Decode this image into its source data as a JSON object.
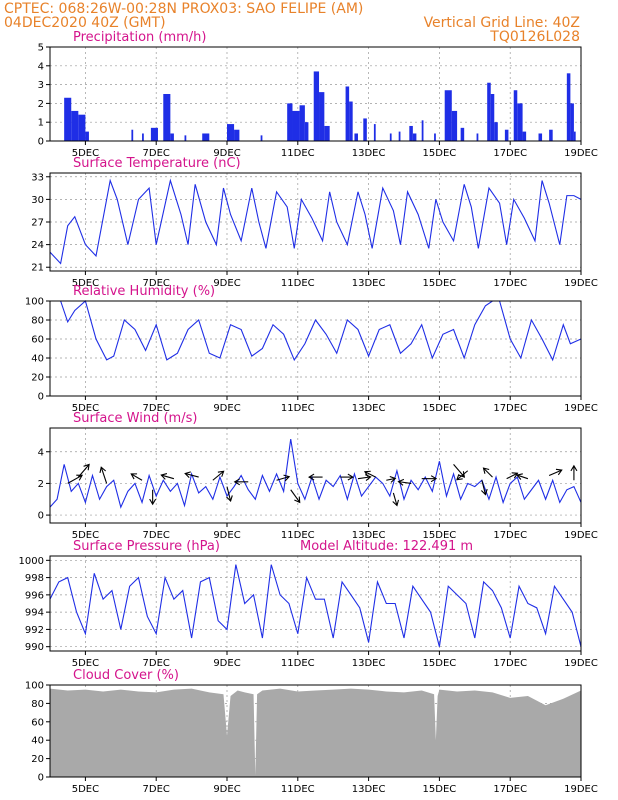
{
  "header": {
    "line1_left": "CPTEC:   068:26W-00:28N   PROX03: SAO FELIPE (AM)",
    "line2_left": "04DEC2020 40Z (GMT)",
    "line2_right": "Vertical Grid Line: 40Z",
    "line3_right": "TQ0126L028"
  },
  "colors": {
    "header": "#e8822a",
    "panel_title": "#d4148c",
    "series_line": "#1f2ee6",
    "precip_bar": "#1f2ee6",
    "cloud_fill": "#a9a9a9",
    "arrow": "#000000"
  },
  "x_axis": {
    "start_day": 4,
    "end_day": 19,
    "tick_days": [
      5,
      7,
      9,
      11,
      13,
      15,
      17,
      19
    ],
    "tick_labels": [
      "5DEC",
      "7DEC",
      "9DEC",
      "11DEC",
      "13DEC",
      "15DEC",
      "17DEC",
      "19DEC"
    ]
  },
  "chart_data": [
    {
      "id": "precip",
      "type": "bar",
      "title": "Precipitation (mm/h)",
      "ylim": [
        0,
        5
      ],
      "yticks": [
        0,
        1,
        2,
        3,
        4,
        5
      ],
      "events": [
        [
          4.4,
          4.6,
          2.3
        ],
        [
          4.6,
          4.8,
          1.6
        ],
        [
          4.8,
          5.0,
          1.4
        ],
        [
          5.0,
          5.1,
          0.5
        ],
        [
          6.3,
          6.35,
          0.6
        ],
        [
          6.6,
          6.65,
          0.4
        ],
        [
          6.85,
          7.05,
          0.7
        ],
        [
          7.2,
          7.4,
          2.5
        ],
        [
          7.4,
          7.5,
          0.4
        ],
        [
          7.8,
          7.85,
          0.3
        ],
        [
          8.3,
          8.5,
          0.4
        ],
        [
          9.0,
          9.2,
          0.9
        ],
        [
          9.2,
          9.35,
          0.6
        ],
        [
          9.95,
          10.0,
          0.3
        ],
        [
          10.7,
          10.85,
          2.0
        ],
        [
          10.85,
          11.05,
          1.6
        ],
        [
          11.05,
          11.2,
          1.9
        ],
        [
          11.2,
          11.3,
          1.0
        ],
        [
          11.45,
          11.6,
          3.7
        ],
        [
          11.6,
          11.75,
          2.6
        ],
        [
          11.75,
          11.9,
          0.8
        ],
        [
          12.35,
          12.45,
          2.9
        ],
        [
          12.45,
          12.55,
          2.1
        ],
        [
          12.6,
          12.7,
          0.4
        ],
        [
          12.85,
          12.95,
          1.2
        ],
        [
          13.15,
          13.2,
          0.9
        ],
        [
          13.6,
          13.65,
          0.4
        ],
        [
          13.85,
          13.9,
          0.5
        ],
        [
          14.15,
          14.25,
          0.8
        ],
        [
          14.25,
          14.35,
          0.4
        ],
        [
          14.5,
          14.55,
          1.1
        ],
        [
          14.85,
          14.9,
          0.4
        ],
        [
          15.15,
          15.35,
          2.7
        ],
        [
          15.35,
          15.5,
          1.6
        ],
        [
          15.6,
          15.7,
          0.7
        ],
        [
          16.05,
          16.1,
          0.4
        ],
        [
          16.35,
          16.45,
          3.1
        ],
        [
          16.45,
          16.55,
          2.5
        ],
        [
          16.55,
          16.65,
          1.0
        ],
        [
          16.85,
          16.95,
          0.6
        ],
        [
          17.1,
          17.2,
          2.7
        ],
        [
          17.2,
          17.35,
          2.0
        ],
        [
          17.35,
          17.45,
          0.5
        ],
        [
          17.8,
          17.9,
          0.4
        ],
        [
          18.1,
          18.2,
          0.6
        ],
        [
          18.6,
          18.7,
          3.6
        ],
        [
          18.7,
          18.8,
          2.0
        ],
        [
          18.8,
          18.85,
          0.5
        ]
      ]
    },
    {
      "id": "temp",
      "type": "line",
      "title": "Surface Temperature (nC)",
      "ylim": [
        20.5,
        33.5
      ],
      "yticks": [
        21,
        24,
        27,
        30,
        33
      ],
      "x": [
        4.0,
        4.3,
        4.5,
        4.7,
        5.0,
        5.3,
        5.7,
        5.9,
        6.2,
        6.5,
        6.8,
        7.0,
        7.4,
        7.7,
        7.9,
        8.1,
        8.4,
        8.7,
        8.9,
        9.1,
        9.4,
        9.7,
        9.9,
        10.1,
        10.4,
        10.7,
        10.9,
        11.1,
        11.4,
        11.7,
        11.9,
        12.1,
        12.4,
        12.7,
        12.9,
        13.1,
        13.4,
        13.7,
        13.9,
        14.1,
        14.4,
        14.7,
        14.9,
        15.1,
        15.4,
        15.7,
        15.9,
        16.1,
        16.4,
        16.7,
        16.9,
        17.1,
        17.4,
        17.7,
        17.9,
        18.1,
        18.4,
        18.6,
        18.8,
        19.0
      ],
      "y": [
        23.0,
        21.5,
        26.5,
        27.7,
        24.0,
        22.5,
        32.5,
        30.0,
        24.0,
        30.0,
        31.5,
        24.0,
        32.5,
        28.0,
        24.0,
        32.0,
        27.0,
        24.0,
        31.5,
        28.0,
        24.5,
        31.5,
        27.0,
        23.5,
        31.0,
        29.0,
        23.5,
        30.0,
        27.5,
        24.5,
        31.0,
        27.0,
        24.0,
        31.0,
        28.0,
        23.5,
        31.5,
        28.5,
        24.0,
        31.0,
        28.0,
        23.5,
        30.0,
        27.0,
        24.5,
        32.0,
        29.0,
        23.5,
        31.5,
        29.5,
        24.0,
        30.0,
        27.5,
        24.5,
        32.5,
        29.5,
        24.0,
        30.5,
        30.5,
        30.0
      ]
    },
    {
      "id": "rh",
      "type": "line",
      "title": "Relative Humidity (%)",
      "ylim": [
        0,
        100
      ],
      "yticks": [
        0,
        20,
        40,
        60,
        80,
        100
      ],
      "x": [
        4.0,
        4.3,
        4.5,
        4.7,
        5.0,
        5.3,
        5.6,
        5.8,
        6.1,
        6.4,
        6.7,
        7.0,
        7.3,
        7.6,
        7.9,
        8.2,
        8.5,
        8.8,
        9.1,
        9.4,
        9.7,
        10.0,
        10.3,
        10.6,
        10.9,
        11.2,
        11.5,
        11.8,
        12.1,
        12.4,
        12.7,
        13.0,
        13.3,
        13.6,
        13.9,
        14.2,
        14.5,
        14.8,
        15.1,
        15.4,
        15.7,
        16.0,
        16.3,
        16.5,
        16.7,
        17.0,
        17.3,
        17.6,
        17.9,
        18.2,
        18.5,
        18.7,
        19.0
      ],
      "y": [
        100,
        100,
        78,
        90,
        100,
        60,
        38,
        42,
        80,
        70,
        48,
        75,
        38,
        45,
        70,
        80,
        45,
        40,
        75,
        70,
        42,
        50,
        75,
        65,
        38,
        55,
        80,
        65,
        45,
        80,
        70,
        42,
        70,
        75,
        45,
        55,
        75,
        40,
        65,
        70,
        40,
        75,
        95,
        100,
        100,
        60,
        40,
        80,
        60,
        38,
        75,
        55,
        60
      ]
    },
    {
      "id": "wind",
      "type": "line",
      "title": "Surface Wind (m/s)",
      "ylim": [
        -0.5,
        5.5
      ],
      "yticks": [
        0,
        2,
        4
      ],
      "x": [
        4.0,
        4.2,
        4.4,
        4.6,
        4.8,
        5.0,
        5.2,
        5.4,
        5.6,
        5.8,
        6.0,
        6.2,
        6.4,
        6.6,
        6.8,
        7.0,
        7.2,
        7.4,
        7.6,
        7.8,
        8.0,
        8.2,
        8.4,
        8.6,
        8.8,
        9.0,
        9.2,
        9.4,
        9.6,
        9.8,
        10.0,
        10.2,
        10.4,
        10.6,
        10.8,
        11.0,
        11.2,
        11.4,
        11.6,
        11.8,
        12.0,
        12.2,
        12.4,
        12.6,
        12.8,
        13.0,
        13.2,
        13.4,
        13.6,
        13.8,
        14.0,
        14.2,
        14.4,
        14.6,
        14.8,
        15.0,
        15.2,
        15.4,
        15.6,
        15.8,
        16.0,
        16.2,
        16.4,
        16.6,
        16.8,
        17.0,
        17.2,
        17.4,
        17.6,
        17.8,
        18.0,
        18.2,
        18.4,
        18.6,
        18.8,
        19.0
      ],
      "y": [
        0.5,
        1.0,
        3.2,
        1.5,
        2.0,
        0.8,
        2.5,
        1.0,
        1.8,
        2.2,
        0.5,
        1.5,
        2.0,
        0.8,
        2.5,
        1.2,
        2.2,
        1.5,
        2.0,
        0.6,
        2.6,
        1.4,
        1.8,
        1.0,
        2.4,
        1.2,
        1.8,
        2.5,
        1.6,
        1.0,
        2.5,
        1.5,
        2.6,
        1.5,
        4.8,
        2.0,
        1.0,
        2.4,
        1.0,
        2.2,
        1.8,
        2.5,
        1.0,
        2.6,
        1.2,
        1.8,
        2.4,
        2.0,
        1.2,
        2.8,
        1.0,
        2.2,
        1.6,
        2.4,
        1.5,
        3.4,
        1.2,
        2.6,
        1.0,
        2.0,
        1.8,
        2.2,
        1.0,
        2.4,
        0.8,
        2.0,
        2.4,
        1.0,
        1.6,
        2.2,
        1.0,
        2.2,
        0.8,
        1.6,
        1.8,
        0.8
      ],
      "arrows": [
        [
          4.5,
          2.0,
          0.8,
          0.45
        ],
        [
          4.8,
          2.4,
          0.6,
          0.7
        ],
        [
          5.6,
          2.0,
          -0.3,
          0.9
        ],
        [
          6.6,
          2.2,
          -0.6,
          0.35
        ],
        [
          6.9,
          1.6,
          0.0,
          -0.8
        ],
        [
          7.5,
          2.3,
          -0.7,
          0.2
        ],
        [
          8.2,
          2.4,
          -0.75,
          0.2
        ],
        [
          8.6,
          2.2,
          0.6,
          0.5
        ],
        [
          9.0,
          1.8,
          0.2,
          -0.8
        ],
        [
          9.6,
          2.1,
          -0.75,
          0.0
        ],
        [
          10.4,
          2.2,
          0.7,
          0.2
        ],
        [
          10.8,
          1.6,
          0.5,
          -0.7
        ],
        [
          11.7,
          2.4,
          -0.75,
          0.0
        ],
        [
          12.2,
          2.4,
          0.7,
          0.0
        ],
        [
          12.7,
          2.3,
          0.7,
          0.1
        ],
        [
          13.2,
          2.4,
          -0.6,
          0.3
        ],
        [
          13.5,
          2.2,
          0.5,
          0.1
        ],
        [
          13.7,
          1.4,
          0.2,
          -0.7
        ],
        [
          14.2,
          2.0,
          -0.7,
          0.1
        ],
        [
          14.5,
          2.3,
          0.8,
          0.0
        ],
        [
          15.4,
          3.2,
          0.6,
          -0.7
        ],
        [
          15.8,
          2.8,
          -0.6,
          -0.5
        ],
        [
          16.2,
          2.2,
          0.2,
          -0.8
        ],
        [
          16.5,
          2.4,
          -0.5,
          0.5
        ],
        [
          16.9,
          2.3,
          0.6,
          0.3
        ],
        [
          17.5,
          2.3,
          -0.6,
          0.2
        ],
        [
          18.1,
          2.5,
          0.7,
          0.3
        ],
        [
          18.8,
          2.2,
          0.0,
          0.8
        ]
      ]
    },
    {
      "id": "pressure",
      "type": "line",
      "title": "Surface Pressure (hPa)",
      "subtitle": "Model Altitude: 122.491  m",
      "ylim": [
        989.5,
        1000.5
      ],
      "yticks": [
        990,
        992,
        994,
        996,
        998,
        1000
      ],
      "x": [
        4.0,
        4.25,
        4.5,
        4.75,
        5.0,
        5.25,
        5.5,
        5.75,
        6.0,
        6.25,
        6.5,
        6.75,
        7.0,
        7.25,
        7.5,
        7.75,
        8.0,
        8.25,
        8.5,
        8.75,
        9.0,
        9.25,
        9.5,
        9.75,
        10.0,
        10.25,
        10.5,
        10.75,
        11.0,
        11.25,
        11.5,
        11.75,
        12.0,
        12.25,
        12.5,
        12.75,
        13.0,
        13.25,
        13.5,
        13.75,
        14.0,
        14.25,
        14.5,
        14.75,
        15.0,
        15.25,
        15.5,
        15.75,
        16.0,
        16.25,
        16.5,
        16.75,
        17.0,
        17.25,
        17.5,
        17.75,
        18.0,
        18.25,
        18.5,
        18.75,
        19.0
      ],
      "y": [
        995.5,
        997.5,
        998.0,
        994.0,
        991.5,
        998.5,
        995.5,
        996.5,
        992.0,
        997.0,
        998.0,
        993.5,
        991.5,
        998.0,
        995.5,
        996.5,
        991.0,
        997.5,
        998.0,
        993.0,
        992.0,
        999.5,
        995.0,
        996.0,
        991.0,
        999.5,
        996.0,
        995.0,
        991.5,
        998.0,
        995.5,
        995.5,
        991.0,
        997.5,
        996.0,
        994.5,
        990.5,
        997.5,
        995.0,
        995.0,
        991.0,
        997.0,
        995.5,
        994.0,
        990.0,
        997.0,
        996.0,
        995.0,
        991.0,
        997.5,
        996.5,
        994.5,
        991.0,
        997.0,
        995.0,
        994.5,
        991.5,
        997.0,
        995.5,
        994.0,
        990.0
      ]
    },
    {
      "id": "cloud",
      "type": "area",
      "title": "Cloud Cover (%)",
      "ylim": [
        0,
        100
      ],
      "yticks": [
        0,
        20,
        40,
        60,
        80,
        100
      ],
      "x": [
        4.0,
        4.5,
        5.0,
        5.5,
        6.0,
        6.5,
        7.0,
        7.5,
        8.0,
        8.5,
        8.9,
        9.0,
        9.1,
        9.3,
        9.5,
        9.75,
        9.8,
        9.85,
        10.0,
        10.5,
        11.0,
        11.5,
        12.0,
        12.5,
        13.0,
        13.5,
        14.0,
        14.5,
        14.85,
        14.9,
        14.95,
        15.0,
        15.5,
        16.0,
        16.5,
        17.0,
        17.5,
        18.0,
        18.5,
        19.0
      ],
      "y": [
        96,
        94,
        95,
        93,
        95,
        93,
        92,
        95,
        96,
        92,
        90,
        45,
        88,
        94,
        92,
        90,
        2,
        90,
        94,
        96,
        93,
        94,
        95,
        96,
        95,
        93,
        92,
        94,
        90,
        40,
        88,
        95,
        93,
        94,
        92,
        86,
        88,
        78,
        85,
        94
      ]
    }
  ]
}
